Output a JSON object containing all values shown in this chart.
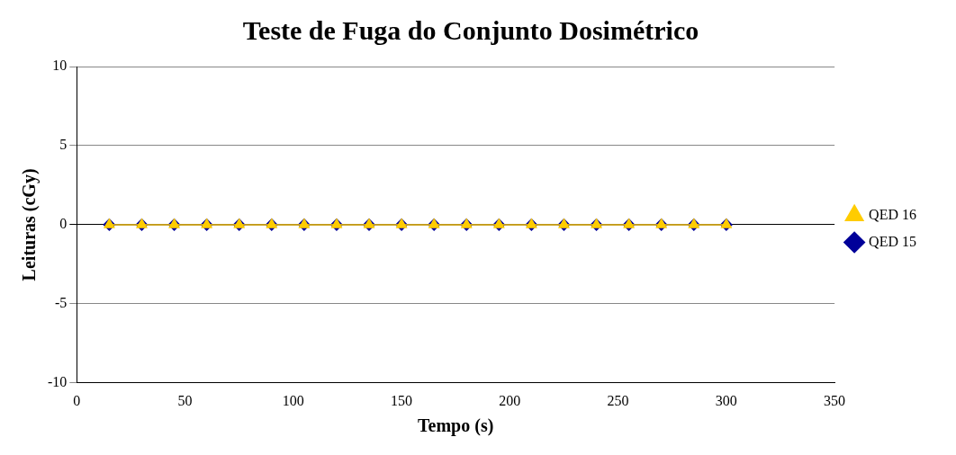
{
  "chart_data": {
    "type": "line",
    "title": "Teste de Fuga do Conjunto Dosimétrico",
    "xlabel": "Tempo (s)",
    "ylabel": "Leituras (cGy)",
    "x": [
      15,
      30,
      45,
      60,
      75,
      90,
      105,
      120,
      135,
      150,
      165,
      180,
      195,
      210,
      225,
      240,
      255,
      270,
      285,
      300
    ],
    "series": [
      {
        "name": "QED 15",
        "color": "#000099",
        "marker": "diamond",
        "values": [
          0,
          0,
          0,
          0,
          0,
          0,
          0,
          0,
          0,
          0,
          0,
          0,
          0,
          0,
          0,
          0,
          0,
          0,
          0,
          0
        ]
      },
      {
        "name": "QED 16",
        "color": "#ffcc00",
        "marker": "triangle",
        "values": [
          0,
          0,
          0,
          0,
          0,
          0,
          0,
          0,
          0,
          0,
          0,
          0,
          0,
          0,
          0,
          0,
          0,
          0,
          0,
          0
        ]
      }
    ],
    "xlim": [
      0,
      350
    ],
    "xticks": [
      0,
      50,
      100,
      150,
      200,
      250,
      300,
      350
    ],
    "ylim": [
      -10,
      10
    ],
    "yticks": [
      -10,
      -5,
      0,
      5,
      10
    ],
    "grid": "y",
    "legend": "right"
  }
}
